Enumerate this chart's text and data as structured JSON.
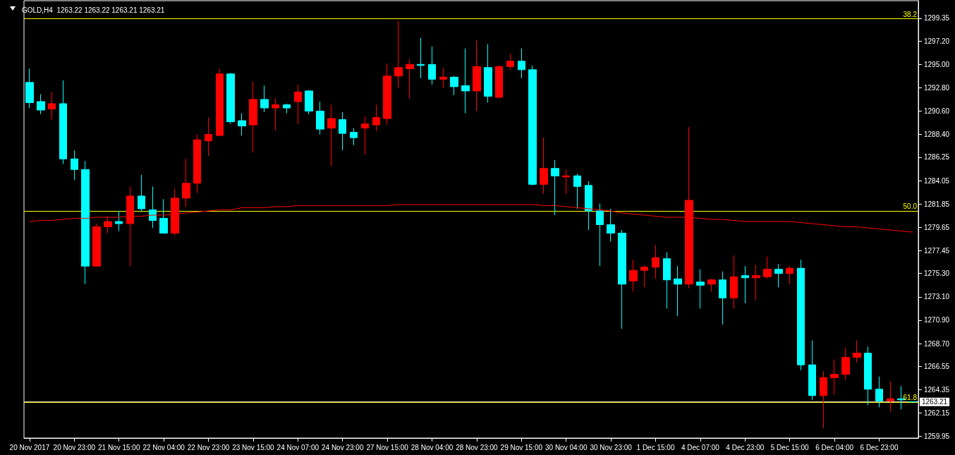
{
  "chart_data": {
    "type": "candlestick",
    "title": "GOLD,H4  1263.22 1263.22 1263.21 1263.21",
    "categories": [
      "20 Nov 2017",
      null,
      null,
      null,
      "20 Nov 23:00",
      null,
      null,
      null,
      "21 Nov 15:00",
      null,
      null,
      null,
      "22 Nov 04:00",
      null,
      null,
      null,
      "22 Nov 23:00",
      null,
      null,
      null,
      "23 Nov 15:00",
      null,
      null,
      null,
      "24 Nov 07:00",
      null,
      null,
      null,
      "24 Nov 23:00",
      null,
      null,
      null,
      "27 Nov 15:00",
      null,
      null,
      null,
      "28 Nov 04:00",
      null,
      null,
      null,
      "28 Nov 23:00",
      null,
      null,
      null,
      "29 Nov 15:00",
      null,
      null,
      null,
      "30 Nov 04:00",
      null,
      null,
      null,
      "30 Nov 23:00",
      null,
      null,
      null,
      "1 Dec 15:00",
      null,
      null,
      null,
      "4 Dec 07:00",
      null,
      null,
      null,
      "4 Dec 23:00",
      null,
      null,
      null,
      "5 Dec 15:00",
      null,
      null,
      null,
      "6 Dec 04:00",
      null,
      null,
      null,
      "6 Dec 23:00",
      null,
      null,
      null
    ],
    "series": [
      {
        "colors": [
          "#00ffff",
          "#00ffff",
          "#ff0000",
          "#00ffff",
          "#00ffff",
          "#00ffff",
          "#ff0000",
          "#ff0000",
          "#00ffff",
          "#ff0000",
          "#00ffff",
          "#00ffff",
          "#00ffff",
          "#ff0000",
          "#ff0000",
          "#ff0000",
          "#ff0000",
          "#ff0000",
          "#00ffff",
          "#00ffff",
          "#ff0000",
          "#00ffff",
          "#ff0000",
          "#00ffff",
          "#ff0000",
          "#00ffff",
          "#00ffff",
          "#ff0000",
          "#00ffff",
          "#00ffff",
          "#ff0000",
          "#ff0000",
          "#ff0000",
          "#ff0000",
          "#ff0000",
          "#00ffff",
          "#00ffff",
          "#ff0000",
          "#00ffff",
          "#00ffff",
          "#ff0000",
          "#00ffff",
          "#ff0000",
          "#ff0000",
          "#00ffff",
          "#00ffff",
          "#ff0000",
          "#00ffff",
          "#ff0000",
          "#00ffff",
          "#00ffff",
          "#00ffff",
          "#00ffff",
          "#00ffff",
          "#ff0000",
          "#ff0000",
          "#ff0000",
          "#00ffff",
          "#00ffff",
          "#ff0000",
          "#00ffff",
          "#ff0000",
          "#00ffff",
          "#ff0000",
          "#00ffff",
          "#ff0000",
          "#ff0000",
          "#00ffff",
          "#ff0000",
          "#00ffff",
          "#00ffff",
          "#ff0000",
          "#ff0000",
          "#ff0000",
          "#ff0000",
          "#00ffff",
          "#00ffff",
          "#ff0000",
          "#00ffff",
          "#00ffff"
        ],
        "ohlc": [
          [
            1293.3,
            1294.6,
            1290.9,
            1291.4
          ],
          [
            1291.5,
            1292.2,
            1290.3,
            1290.7
          ],
          [
            1290.8,
            1292.4,
            1289.8,
            1291.3
          ],
          [
            1291.3,
            1293.5,
            1285.6,
            1286.1
          ],
          [
            1286.1,
            1286.9,
            1284.1,
            1285.1
          ],
          [
            1285.1,
            1285.9,
            1274.3,
            1276.0
          ],
          [
            1276.0,
            1280.0,
            1276.0,
            1279.7
          ],
          [
            1279.7,
            1280.7,
            1279.1,
            1280.2
          ],
          [
            1280.2,
            1281.2,
            1279.3,
            1280.0
          ],
          [
            1280.0,
            1283.5,
            1276.0,
            1282.6
          ],
          [
            1282.6,
            1284.6,
            1281.1,
            1281.4
          ],
          [
            1281.3,
            1283.5,
            1279.6,
            1280.3
          ],
          [
            1280.5,
            1282.3,
            1279.1,
            1279.1
          ],
          [
            1279.1,
            1283.3,
            1278.9,
            1282.4
          ],
          [
            1282.4,
            1286.1,
            1281.6,
            1283.8
          ],
          [
            1283.8,
            1288.4,
            1282.9,
            1287.9
          ],
          [
            1287.8,
            1290.0,
            1286.4,
            1288.4
          ],
          [
            1288.3,
            1294.6,
            1288.3,
            1294.1
          ],
          [
            1294.1,
            1294.2,
            1289.4,
            1289.6
          ],
          [
            1289.7,
            1290.4,
            1288.3,
            1289.2
          ],
          [
            1289.3,
            1293.4,
            1286.7,
            1291.7
          ],
          [
            1291.7,
            1293.0,
            1290.5,
            1290.9
          ],
          [
            1290.9,
            1291.8,
            1288.8,
            1291.2
          ],
          [
            1291.2,
            1291.3,
            1290.4,
            1290.9
          ],
          [
            1291.5,
            1293.1,
            1289.4,
            1292.4
          ],
          [
            1292.5,
            1292.6,
            1290.3,
            1290.6
          ],
          [
            1290.6,
            1291.5,
            1288.4,
            1288.9
          ],
          [
            1289.0,
            1291.2,
            1285.4,
            1289.9
          ],
          [
            1289.8,
            1290.5,
            1286.9,
            1288.5
          ],
          [
            1288.6,
            1289.0,
            1287.4,
            1288.1
          ],
          [
            1289.0,
            1290.1,
            1286.5,
            1289.4
          ],
          [
            1289.3,
            1291.2,
            1288.7,
            1290.0
          ],
          [
            1289.9,
            1295.1,
            1289.3,
            1293.9
          ],
          [
            1293.9,
            1299.1,
            1292.8,
            1294.7
          ],
          [
            1294.6,
            1295.5,
            1291.8,
            1295.0
          ],
          [
            1295.0,
            1297.5,
            1293.7,
            1294.9
          ],
          [
            1295.0,
            1296.7,
            1293.1,
            1293.6
          ],
          [
            1293.6,
            1294.7,
            1292.8,
            1293.8
          ],
          [
            1293.8,
            1293.9,
            1292.1,
            1292.9
          ],
          [
            1293.0,
            1296.5,
            1290.4,
            1292.5
          ],
          [
            1292.5,
            1297.3,
            1290.6,
            1294.8
          ],
          [
            1294.7,
            1296.9,
            1291.4,
            1292.0
          ],
          [
            1291.9,
            1294.9,
            1291.8,
            1294.8
          ],
          [
            1294.8,
            1296.0,
            1294.5,
            1295.3
          ],
          [
            1295.3,
            1296.5,
            1293.7,
            1294.5
          ],
          [
            1294.5,
            1294.9,
            1283.6,
            1283.7
          ],
          [
            1283.7,
            1288.1,
            1282.8,
            1285.2
          ],
          [
            1285.2,
            1286.0,
            1280.8,
            1284.5
          ],
          [
            1284.4,
            1285.1,
            1282.8,
            1284.5
          ],
          [
            1284.5,
            1284.7,
            1281.4,
            1283.5
          ],
          [
            1283.6,
            1284.0,
            1279.4,
            1281.2
          ],
          [
            1281.2,
            1281.9,
            1276.0,
            1279.9
          ],
          [
            1279.9,
            1281.4,
            1278.3,
            1279.1
          ],
          [
            1279.1,
            1279.4,
            1270.1,
            1274.3
          ],
          [
            1274.6,
            1276.6,
            1273.6,
            1275.6
          ],
          [
            1275.6,
            1276.1,
            1274.0,
            1275.9
          ],
          [
            1275.9,
            1278.0,
            1274.8,
            1276.8
          ],
          [
            1276.7,
            1277.3,
            1272.0,
            1274.7
          ],
          [
            1274.8,
            1276.0,
            1271.3,
            1274.3
          ],
          [
            1274.3,
            1289.1,
            1273.9,
            1282.2
          ],
          [
            1274.5,
            1275.7,
            1272.0,
            1274.2
          ],
          [
            1274.3,
            1274.8,
            1273.6,
            1274.7
          ],
          [
            1274.7,
            1275.5,
            1270.5,
            1273.0
          ],
          [
            1273.0,
            1277.0,
            1272.0,
            1275.0
          ],
          [
            1275.1,
            1276.0,
            1272.5,
            1274.9
          ],
          [
            1274.9,
            1276.1,
            1272.8,
            1275.1
          ],
          [
            1275.0,
            1276.9,
            1274.8,
            1275.7
          ],
          [
            1275.7,
            1276.2,
            1274.0,
            1275.3
          ],
          [
            1275.3,
            1276.0,
            1274.3,
            1275.8
          ],
          [
            1275.8,
            1276.6,
            1266.2,
            1266.7
          ],
          [
            1266.7,
            1269.0,
            1263.4,
            1263.8
          ],
          [
            1263.8,
            1266.1,
            1260.7,
            1265.5
          ],
          [
            1265.5,
            1267.2,
            1263.9,
            1265.8
          ],
          [
            1265.8,
            1268.3,
            1265.3,
            1267.4
          ],
          [
            1267.4,
            1269.0,
            1266.9,
            1267.8
          ],
          [
            1267.8,
            1268.4,
            1262.9,
            1264.4
          ],
          [
            1264.4,
            1265.6,
            1262.7,
            1263.3
          ],
          [
            1263.3,
            1265.1,
            1262.3,
            1263.5
          ],
          [
            1263.5,
            1264.7,
            1262.5,
            1263.4
          ],
          [
            1263.22,
            1263.22,
            1263.21,
            1263.21
          ]
        ]
      },
      {
        "type": "line",
        "color": "#ff0000",
        "values": [
          1280.2,
          1280.3,
          1280.3,
          1280.4,
          1280.5,
          1280.5,
          1280.6,
          1280.6,
          1280.6,
          1280.7,
          1280.7,
          1280.8,
          1280.8,
          1280.9,
          1281.0,
          1281.1,
          1281.2,
          1281.3,
          1281.3,
          1281.5,
          1281.5,
          1281.5,
          1281.6,
          1281.6,
          1281.7,
          1281.7,
          1281.7,
          1281.7,
          1281.7,
          1281.7,
          1281.7,
          1281.7,
          1281.7,
          1281.8,
          1281.8,
          1281.8,
          1281.8,
          1281.8,
          1281.8,
          1281.8,
          1281.8,
          1281.8,
          1281.8,
          1281.8,
          1281.8,
          1281.8,
          1281.7,
          1281.7,
          1281.6,
          1281.5,
          1281.4,
          1281.3,
          1281.2,
          1281.0,
          1280.9,
          1280.8,
          1280.7,
          1280.6,
          1280.6,
          1280.6,
          1280.5,
          1280.4,
          1280.4,
          1280.3,
          1280.2,
          1280.2,
          1280.2,
          1280.2,
          1280.2,
          1280.1,
          1280.0,
          1279.9,
          1279.8,
          1279.7,
          1279.7,
          1279.6,
          1279.5,
          1279.4,
          1279.3,
          1279.2
        ]
      }
    ],
    "ylim": [
      1259.8,
      1301.0
    ],
    "yticks": [
      {
        "value": 1259.95,
        "label": "1259.95"
      },
      {
        "value": 1262.15,
        "label": "1262.15"
      },
      {
        "value": 1264.35,
        "label": "1264.35"
      },
      {
        "value": 1266.55,
        "label": "1266.55"
      },
      {
        "value": 1268.7,
        "label": "1268.70"
      },
      {
        "value": 1270.9,
        "label": "1270.90"
      },
      {
        "value": 1273.1,
        "label": "1273.10"
      },
      {
        "value": 1275.3,
        "label": "1275.30"
      },
      {
        "value": 1277.45,
        "label": "1277.45"
      },
      {
        "value": 1279.65,
        "label": "1279.65"
      },
      {
        "value": 1281.85,
        "label": "1281.85"
      },
      {
        "value": 1284.05,
        "label": "1284.05"
      },
      {
        "value": 1286.25,
        "label": "1286.25"
      },
      {
        "value": 1288.4,
        "label": "1288.40"
      },
      {
        "value": 1290.6,
        "label": "1290.60"
      },
      {
        "value": 1292.8,
        "label": "1292.80"
      },
      {
        "value": 1295.0,
        "label": "1295.00"
      },
      {
        "value": 1297.2,
        "label": "1297.20"
      },
      {
        "value": 1299.35,
        "label": "1299.35"
      }
    ],
    "ref_lines": [
      {
        "axis": "y",
        "value": 1299.3,
        "color": "#ffff00"
      },
      {
        "axis": "y",
        "value": 1281.2,
        "color": "#ffff00"
      },
      {
        "axis": "y",
        "value": 1263.2,
        "color": "#ffff00"
      },
      {
        "axis": "y",
        "value": 1263.21,
        "label": "1263.21",
        "color": "#c0c0c0"
      }
    ],
    "annotations": [
      {
        "text": "38.2",
        "y": 1299.3
      },
      {
        "text": "50.0",
        "y": 1281.2
      },
      {
        "text": "61.8",
        "y": 1263.2
      }
    ],
    "grid": false
  }
}
